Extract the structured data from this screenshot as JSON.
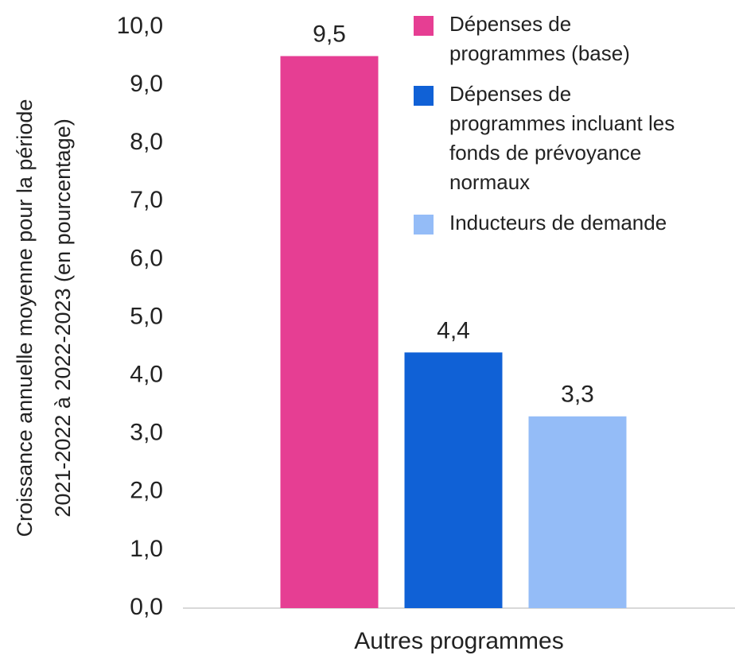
{
  "chart_data": {
    "type": "bar",
    "y_label": "Croissance annuelle moyenne pour la période\n2021-2022 à 2022-2023 (en pourcentage)",
    "categories": [
      "Autres programmes"
    ],
    "series": [
      {
        "name": "Dépenses de programmes (base)",
        "color": "#e63e93",
        "values": [
          9.5
        ],
        "value_labels": [
          "9,5"
        ]
      },
      {
        "name": "Dépenses de programmes incluant les fonds de prévoyance normaux",
        "color": "#1061d6",
        "values": [
          4.4
        ],
        "value_labels": [
          "4,4"
        ]
      },
      {
        "name": "Inducteurs de demande",
        "color": "#94bcf7",
        "values": [
          3.3
        ],
        "value_labels": [
          "3,3"
        ]
      }
    ],
    "ylim": [
      0,
      10
    ],
    "yticks": [
      {
        "value": 0,
        "label": "0,0"
      },
      {
        "value": 1,
        "label": "1,0"
      },
      {
        "value": 2,
        "label": "2,0"
      },
      {
        "value": 3,
        "label": "3,0"
      },
      {
        "value": 4,
        "label": "4,0"
      },
      {
        "value": 5,
        "label": "5,0"
      },
      {
        "value": 6,
        "label": "6,0"
      },
      {
        "value": 7,
        "label": "7,0"
      },
      {
        "value": 8,
        "label": "8,0"
      },
      {
        "value": 9,
        "label": "9,0"
      },
      {
        "value": 10,
        "label": "10,0"
      }
    ],
    "grid": false,
    "legend": "upper right"
  }
}
